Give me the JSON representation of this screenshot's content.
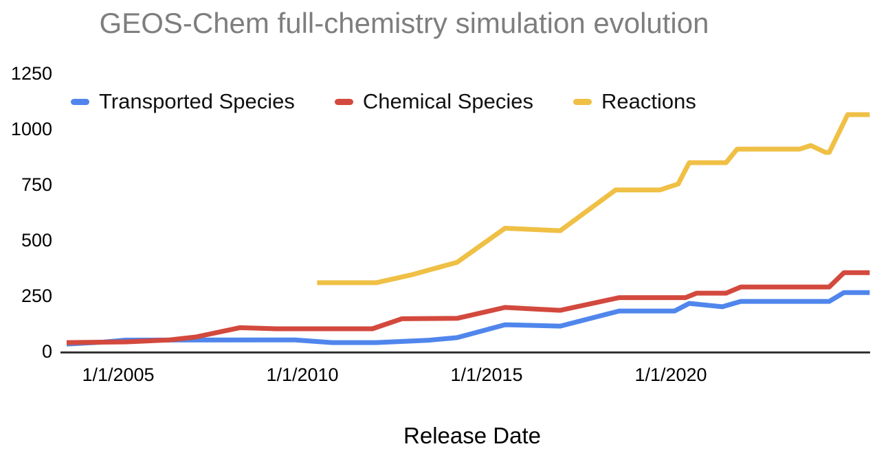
{
  "colors": {
    "title": "#7e7e7e",
    "axis": "#333333",
    "tick_text": "#000000",
    "blue": "#5086ec",
    "red": "#d3493d",
    "yellow": "#efc045"
  },
  "chart_data": {
    "type": "line",
    "title": "GEOS-Chem full-chemistry simulation evolution",
    "xlabel": "Release Date",
    "ylabel": "",
    "x_unit": "decimal_year",
    "xlim": [
      2003.5,
      2025.5
    ],
    "ylim": [
      0,
      1250
    ],
    "grid": false,
    "legend_position": "top-left",
    "yticks": [
      0,
      250,
      500,
      750,
      1000,
      1250
    ],
    "xticks": [
      {
        "x": 2005,
        "label": "1/1/2005"
      },
      {
        "x": 2010,
        "label": "1/1/2010"
      },
      {
        "x": 2015,
        "label": "1/1/2015"
      },
      {
        "x": 2020,
        "label": "1/1/2020"
      }
    ],
    "series": [
      {
        "name": "Transported Species",
        "color": "#5086ec",
        "points": [
          [
            2003.6,
            36
          ],
          [
            2004.6,
            45
          ],
          [
            2005.2,
            54
          ],
          [
            2009.8,
            55
          ],
          [
            2010.8,
            43
          ],
          [
            2012.0,
            43
          ],
          [
            2013.4,
            53
          ],
          [
            2014.2,
            65
          ],
          [
            2015.5,
            123
          ],
          [
            2017.0,
            117
          ],
          [
            2018.6,
            185
          ],
          [
            2020.1,
            185
          ],
          [
            2020.5,
            219
          ],
          [
            2021.4,
            204
          ],
          [
            2021.9,
            228
          ],
          [
            2024.3,
            228
          ],
          [
            2024.7,
            268
          ],
          [
            2025.4,
            268
          ]
        ]
      },
      {
        "name": "Chemical Species",
        "color": "#d3493d",
        "points": [
          [
            2003.6,
            43
          ],
          [
            2005.2,
            46
          ],
          [
            2006.4,
            55
          ],
          [
            2007.1,
            68
          ],
          [
            2008.3,
            110
          ],
          [
            2009.3,
            105
          ],
          [
            2011.9,
            105
          ],
          [
            2012.7,
            150
          ],
          [
            2014.2,
            152
          ],
          [
            2015.5,
            201
          ],
          [
            2017.0,
            188
          ],
          [
            2018.6,
            245
          ],
          [
            2020.4,
            245
          ],
          [
            2020.7,
            265
          ],
          [
            2021.5,
            265
          ],
          [
            2021.9,
            293
          ],
          [
            2024.3,
            293
          ],
          [
            2024.7,
            357
          ],
          [
            2025.4,
            357
          ]
        ]
      },
      {
        "name": "Reactions",
        "color": "#efc045",
        "points": [
          [
            2010.4,
            312
          ],
          [
            2012.0,
            312
          ],
          [
            2013.0,
            349
          ],
          [
            2014.2,
            404
          ],
          [
            2015.5,
            557
          ],
          [
            2017.0,
            546
          ],
          [
            2018.5,
            729
          ],
          [
            2019.7,
            729
          ],
          [
            2020.2,
            756
          ],
          [
            2020.5,
            852
          ],
          [
            2021.5,
            852
          ],
          [
            2021.8,
            913
          ],
          [
            2023.5,
            913
          ],
          [
            2023.8,
            929
          ],
          [
            2024.2,
            898
          ],
          [
            2024.3,
            898
          ],
          [
            2024.8,
            1068
          ],
          [
            2025.4,
            1068
          ]
        ]
      }
    ]
  }
}
